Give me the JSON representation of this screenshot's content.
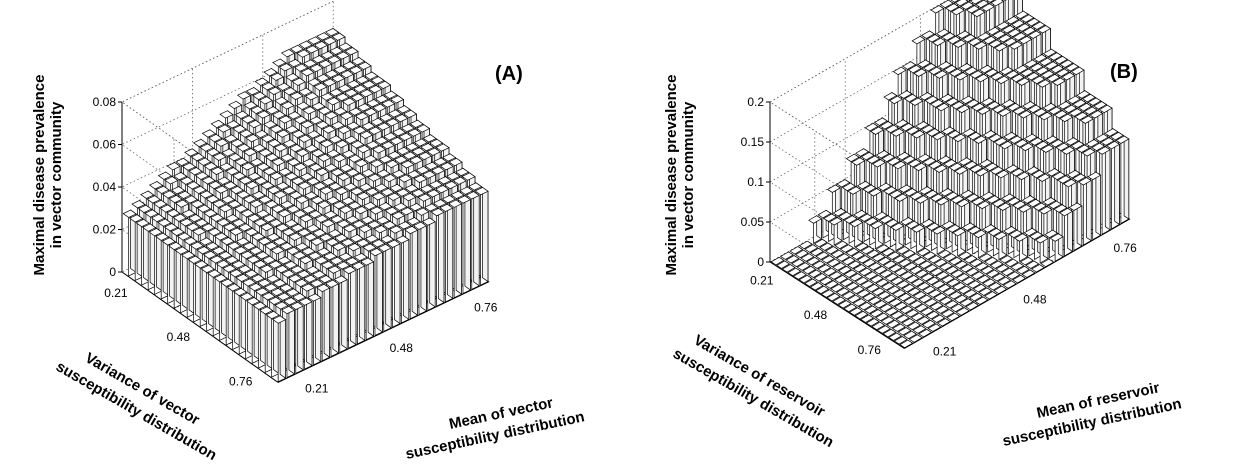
{
  "chart_data": [
    {
      "type": "bar3d",
      "panel_label": "(A)",
      "zlabel_lines": [
        "Maximal disease prevalence",
        "in vector community"
      ],
      "variance_label_lines": [
        "Variance of vector",
        "susceptibility distribution"
      ],
      "mean_label_lines": [
        "Mean of vector",
        "susceptibility distribution"
      ],
      "zticks": [
        "0",
        "0.02",
        "0.04",
        "0.06",
        "0.08"
      ],
      "zlim": [
        0,
        0.08
      ],
      "variance_ticks": [
        "0.21",
        "0.48",
        "0.76"
      ],
      "mean_ticks": [
        "0.21",
        "0.48",
        "0.76"
      ],
      "grid": true,
      "surface": {
        "base_value": 0.028,
        "max_value": 0.068,
        "description_values": {
          "low_variance_low_mean": 0.028,
          "high_variance_low_mean": 0.028,
          "low_variance_high_mean": 0.068,
          "high_variance_high_mean": 0.042
        }
      }
    },
    {
      "type": "bar3d",
      "panel_label": "(B)",
      "zlabel_lines": [
        "Maximal disease prevalence",
        "in vector community"
      ],
      "variance_label_lines": [
        "Variance of reservoir",
        "susceptibility distribution"
      ],
      "mean_label_lines": [
        "Mean of reservoir",
        "susceptibility distribution"
      ],
      "zticks": [
        "0",
        "0.05",
        "0.1",
        "0.15",
        "0.2"
      ],
      "zlim": [
        0,
        0.2
      ],
      "variance_ticks": [
        "0.21",
        "0.48",
        "0.76"
      ],
      "mean_ticks": [
        "0.21",
        "0.48",
        "0.76"
      ],
      "grid": true,
      "surface": {
        "base_value": 0.0,
        "max_value": 0.21,
        "description_values": {
          "low_variance_low_mean": 0.0,
          "high_variance_low_mean": 0.0,
          "low_variance_high_mean": 0.21,
          "high_variance_high_mean": 0.1
        }
      }
    }
  ]
}
